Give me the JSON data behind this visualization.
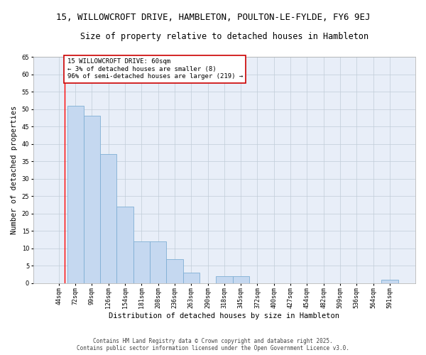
{
  "title": "15, WILLOWCROFT DRIVE, HAMBLETON, POULTON-LE-FYLDE, FY6 9EJ",
  "subtitle": "Size of property relative to detached houses in Hambleton",
  "xlabel": "Distribution of detached houses by size in Hambleton",
  "ylabel": "Number of detached properties",
  "categories": [
    "44sqm",
    "72sqm",
    "99sqm",
    "126sqm",
    "154sqm",
    "181sqm",
    "208sqm",
    "236sqm",
    "263sqm",
    "290sqm",
    "318sqm",
    "345sqm",
    "372sqm",
    "400sqm",
    "427sqm",
    "454sqm",
    "482sqm",
    "509sqm",
    "536sqm",
    "564sqm",
    "591sqm"
  ],
  "values": [
    0,
    51,
    48,
    37,
    22,
    12,
    12,
    7,
    3,
    0,
    2,
    2,
    0,
    0,
    0,
    0,
    0,
    0,
    0,
    0,
    1
  ],
  "bar_color": "#c5d8f0",
  "bar_edge_color": "#7fafd4",
  "red_line_x": 0.36,
  "annotation_text": "15 WILLOWCROFT DRIVE: 60sqm\n← 3% of detached houses are smaller (8)\n96% of semi-detached houses are larger (219) →",
  "annotation_box_color": "#ffffff",
  "annotation_box_edge_color": "#cc0000",
  "ylim": [
    0,
    65
  ],
  "yticks": [
    0,
    5,
    10,
    15,
    20,
    25,
    30,
    35,
    40,
    45,
    50,
    55,
    60,
    65
  ],
  "plot_bg_color": "#e8eef8",
  "background_color": "#ffffff",
  "grid_color": "#c0ccd8",
  "footer_line1": "Contains HM Land Registry data © Crown copyright and database right 2025.",
  "footer_line2": "Contains public sector information licensed under the Open Government Licence v3.0.",
  "title_fontsize": 9,
  "subtitle_fontsize": 8.5,
  "axis_label_fontsize": 7.5,
  "tick_fontsize": 6,
  "annotation_fontsize": 6.5,
  "footer_fontsize": 5.5
}
